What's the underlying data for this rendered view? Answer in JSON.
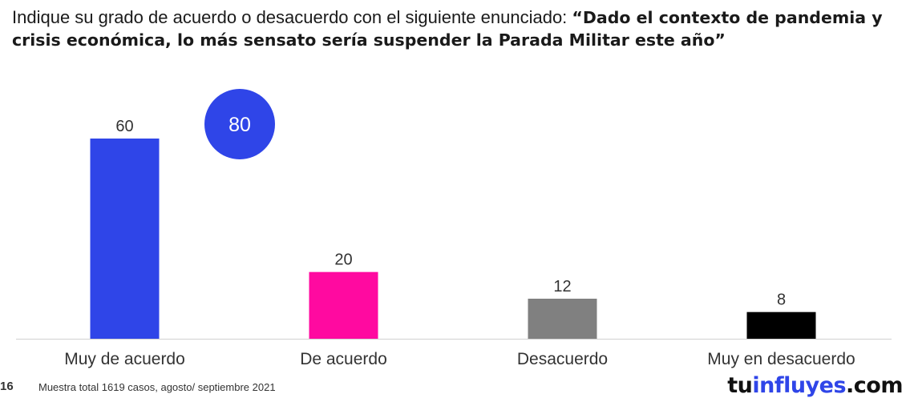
{
  "title": {
    "prefix": "Indique su grado de acuerdo o desacuerdo con el siguiente enunciado: ",
    "quote": "“Dado el contexto de pandemia y crisis económica, lo más sensato sería suspender la Parada Militar este año”"
  },
  "chart_data": {
    "type": "bar",
    "categories": [
      "Muy de acuerdo",
      "De acuerdo",
      "Desacuerdo",
      "Muy en desacuerdo"
    ],
    "values": [
      60,
      20,
      12,
      8
    ],
    "colors": [
      "#2f45e8",
      "#ff0aa0",
      "#808080",
      "#000000"
    ],
    "ylim": [
      0,
      65
    ],
    "grid": false,
    "highlight": {
      "value": "80",
      "color": "#2f45e8"
    }
  },
  "footer": {
    "page_number": "16",
    "note": "Muestra total 1619 casos, agosto/ septiembre 2021"
  },
  "brand": {
    "part1": "tu",
    "part2": "influyes",
    "part3": ".com"
  }
}
